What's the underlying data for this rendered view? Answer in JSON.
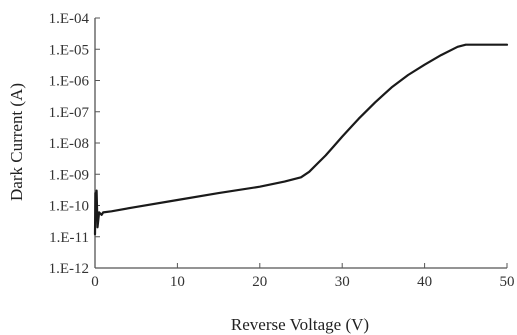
{
  "chart_data": {
    "type": "line",
    "title": "",
    "xlabel": "Reverse Voltage (V)",
    "ylabel": "Dark Current (A)",
    "xlim": [
      0,
      50
    ],
    "ylim": [
      1e-12,
      0.0001
    ],
    "yscale": "log",
    "grid": false,
    "legend": "none",
    "xticks": [
      0,
      10,
      20,
      30,
      40,
      50
    ],
    "xtick_labels": [
      "0",
      "10",
      "20",
      "30",
      "40",
      "50"
    ],
    "yticks": [
      1e-12,
      1e-11,
      1e-10,
      1e-09,
      1e-08,
      1e-07,
      1e-06,
      1e-05,
      0.0001
    ],
    "ytick_labels": [
      "1.E-12",
      "1.E-11",
      "1.E-10",
      "1.E-09",
      "1.E-08",
      "1.E-07",
      "1.E-06",
      "1.E-05",
      "1.E-04"
    ],
    "series": [
      {
        "color": "#1a1a1a",
        "x": [
          0,
          0.05,
          0.1,
          0.2,
          0.3,
          0.5,
          0.8,
          1,
          2,
          5,
          10,
          15,
          20,
          23,
          25,
          26,
          27,
          28,
          29,
          30,
          32,
          34,
          36,
          38,
          40,
          42,
          44,
          45,
          46,
          48,
          50
        ],
        "y": [
          1.2e-11,
          2.5e-10,
          4e-11,
          3e-10,
          2e-11,
          6e-11,
          5e-11,
          6e-11,
          6.5e-11,
          9e-11,
          1.5e-10,
          2.5e-10,
          4e-10,
          5.8e-10,
          8e-10,
          1.2e-09,
          2.2e-09,
          4e-09,
          8e-09,
          1.6e-08,
          6e-08,
          2e-07,
          6e-07,
          1.5e-06,
          3.2e-06,
          6.5e-06,
          1.2e-05,
          1.4e-05,
          1.4e-05,
          1.4e-05,
          1.4e-05
        ]
      }
    ]
  }
}
